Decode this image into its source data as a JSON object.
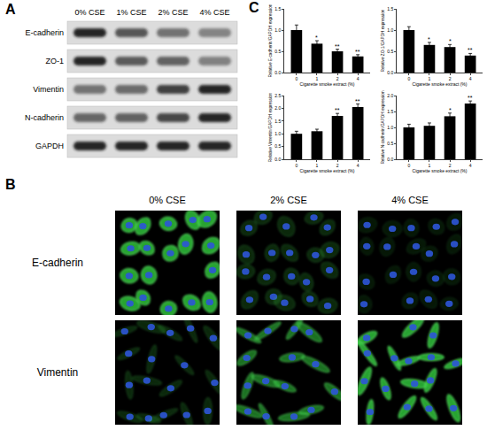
{
  "figure": {
    "panel_labels": [
      "A",
      "B",
      "C"
    ],
    "blot": {
      "columns": [
        "0% CSE",
        "1% CSE",
        "2% CSE",
        "4% CSE"
      ],
      "rows": [
        "E-cadherin",
        "ZO-1",
        "Vimentin",
        "N-cadherin",
        "GAPDH"
      ]
    },
    "staining": {
      "columns": [
        "0% CSE",
        "2% CSE",
        "4% CSE"
      ],
      "rows": [
        "E-cadherin",
        "Vimentin"
      ]
    }
  },
  "chart_data": [
    {
      "type": "bar",
      "categories": [
        "0",
        "1",
        "2",
        "4"
      ],
      "values": [
        1.0,
        0.68,
        0.5,
        0.38
      ],
      "errors": [
        0.12,
        0.07,
        0.05,
        0.04
      ],
      "significance": [
        null,
        "*",
        "**",
        "**"
      ],
      "x_label": "Cigarette smoke extract (%)",
      "y_label": "Relative E-cadherin/GAPDH expression",
      "ylim": [
        0,
        1.5
      ],
      "yticks": [
        {
          "value": 0,
          "label": "0.0"
        },
        {
          "value": 0.5,
          "label": "0.5"
        },
        {
          "value": 1,
          "label": "1.0"
        },
        {
          "value": 1.5,
          "label": "1.5"
        }
      ],
      "color": "#000000",
      "grid": false
    },
    {
      "type": "bar",
      "categories": [
        "0",
        "1",
        "2",
        "4"
      ],
      "values": [
        1.0,
        0.65,
        0.6,
        0.4
      ],
      "errors": [
        0.08,
        0.06,
        0.06,
        0.05
      ],
      "significance": [
        null,
        "*",
        "*",
        "**"
      ],
      "x_label": "Cigarette smoke extract (%)",
      "y_label": "Relative ZO-1/GAPDH expression",
      "ylim": [
        0,
        1.5
      ],
      "yticks": [
        {
          "value": 0,
          "label": "0.0"
        },
        {
          "value": 0.5,
          "label": "0.5"
        },
        {
          "value": 1,
          "label": "1.0"
        },
        {
          "value": 1.5,
          "label": "1.5"
        }
      ],
      "color": "#000000",
      "grid": false
    },
    {
      "type": "bar",
      "categories": [
        "0",
        "1",
        "2",
        "4"
      ],
      "values": [
        1.0,
        1.1,
        1.7,
        2.05
      ],
      "errors": [
        0.1,
        0.08,
        0.1,
        0.12
      ],
      "significance": [
        null,
        null,
        "**",
        "**"
      ],
      "x_label": "Cigarette smoke extract (%)",
      "y_label": "Relative Vimentin/GAPDH expression",
      "ylim": [
        0,
        2.5
      ],
      "yticks": [
        {
          "value": 0,
          "label": "0.0"
        },
        {
          "value": 0.5,
          "label": "0.5"
        },
        {
          "value": 1,
          "label": "1.0"
        },
        {
          "value": 1.5,
          "label": "1.5"
        },
        {
          "value": 2,
          "label": "2.0"
        },
        {
          "value": 2.5,
          "label": "2.5"
        }
      ],
      "color": "#000000",
      "grid": false
    },
    {
      "type": "bar",
      "categories": [
        "0",
        "1",
        "2",
        "4"
      ],
      "values": [
        1.0,
        1.05,
        1.35,
        1.75
      ],
      "errors": [
        0.1,
        0.09,
        0.1,
        0.08
      ],
      "significance": [
        null,
        null,
        "*",
        "**"
      ],
      "x_label": "Cigarette smoke extract (%)",
      "y_label": "Relative N-cadherin/GAPDH expression",
      "ylim": [
        0,
        2
      ],
      "yticks": [
        {
          "value": 0,
          "label": "0.0"
        },
        {
          "value": 0.5,
          "label": "0.5"
        },
        {
          "value": 1,
          "label": "1.0"
        },
        {
          "value": 1.5,
          "label": "1.5"
        },
        {
          "value": 2,
          "label": "2.0"
        }
      ],
      "color": "#000000",
      "grid": false
    }
  ]
}
